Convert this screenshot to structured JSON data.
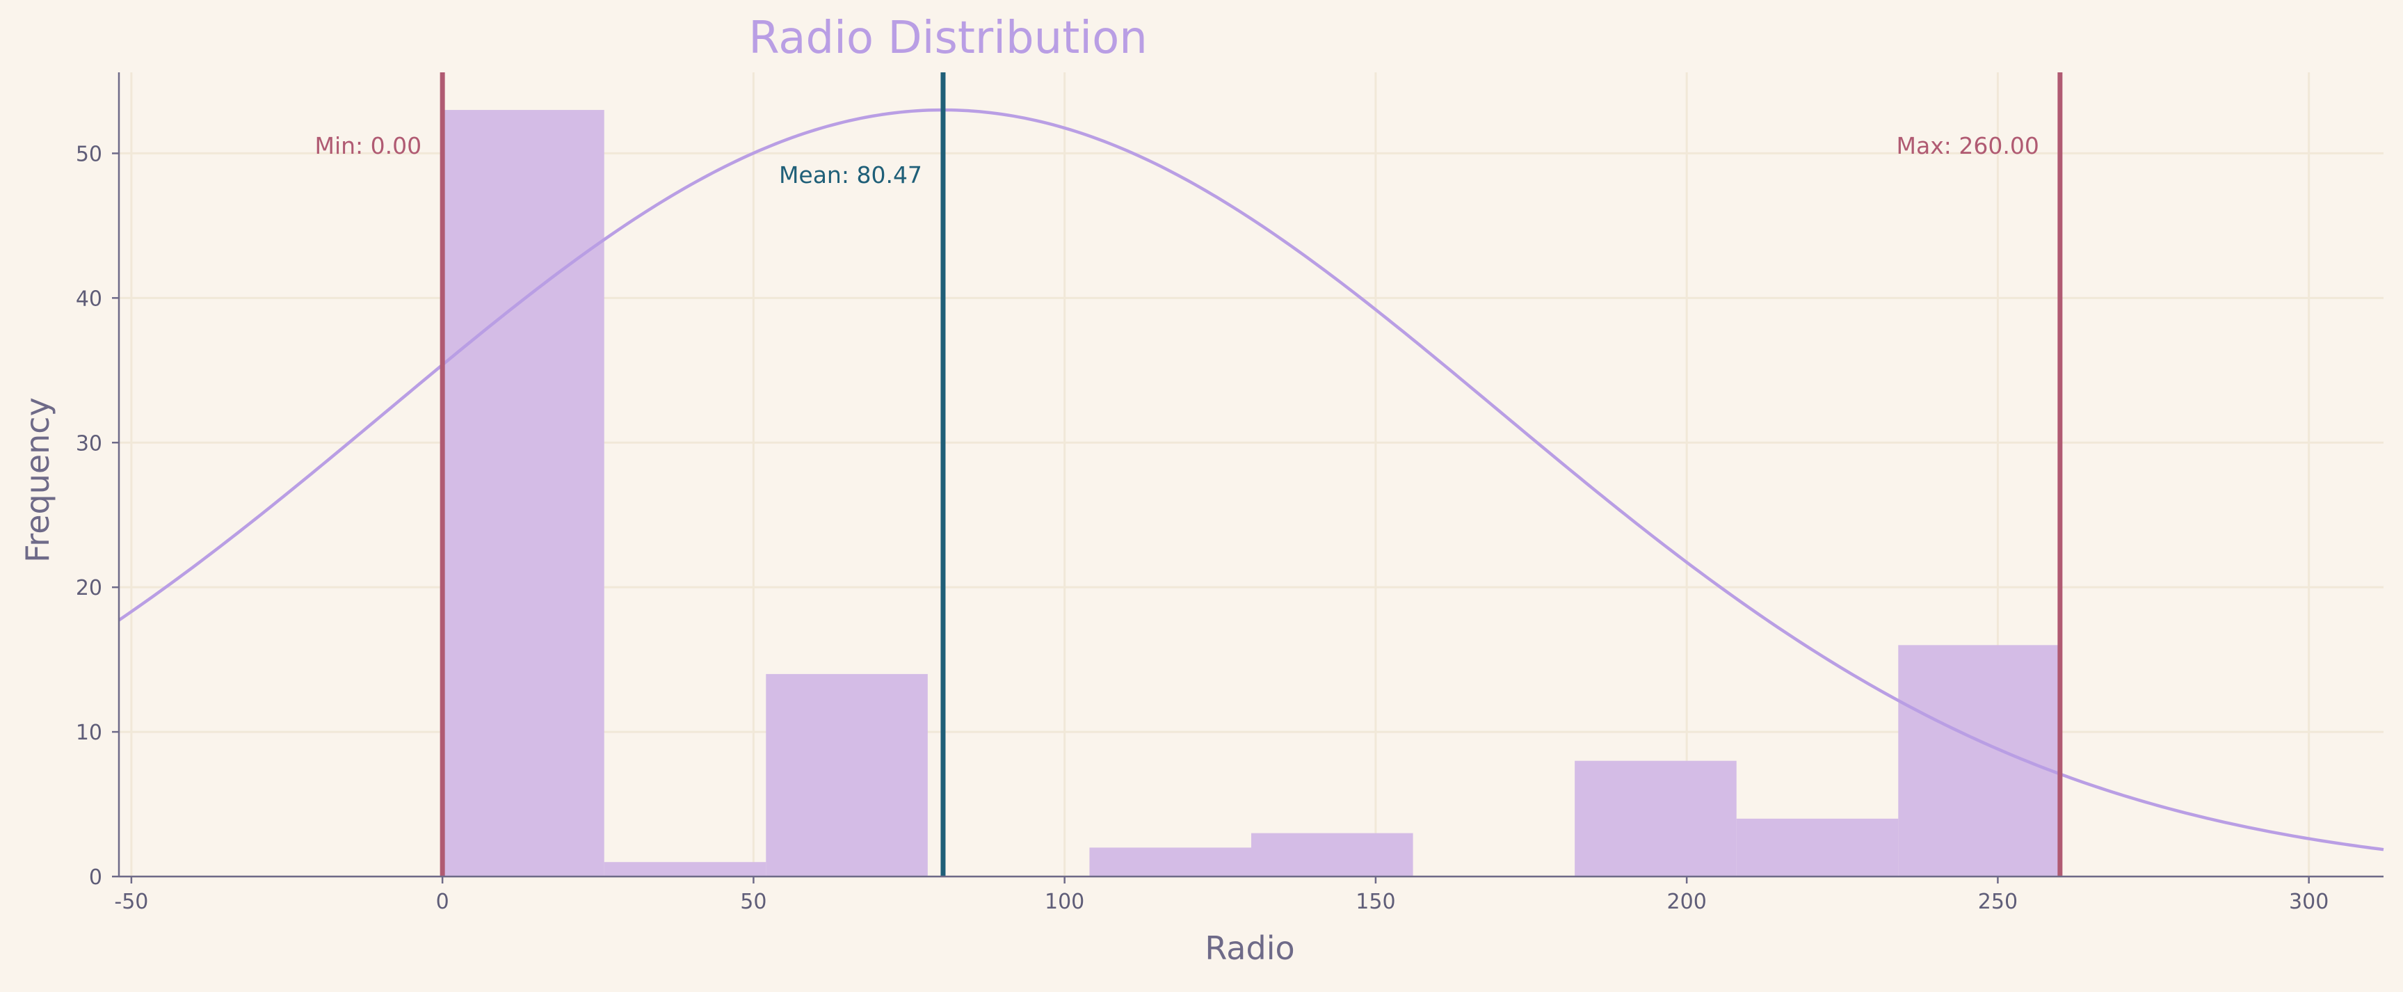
{
  "chart_data": {
    "type": "bar",
    "title": "Radio Distribution",
    "xlabel": "Radio",
    "ylabel": "Frequency",
    "xlim": [
      -52,
      312
    ],
    "ylim": [
      0,
      55.6
    ],
    "xticks": [
      -50,
      0,
      50,
      100,
      150,
      200,
      250,
      300
    ],
    "yticks": [
      0,
      10,
      20,
      30,
      40,
      50
    ],
    "grid": true,
    "bins": [
      {
        "x0": 0,
        "x1": 26,
        "count": 53
      },
      {
        "x0": 26,
        "x1": 52,
        "count": 1
      },
      {
        "x0": 52,
        "x1": 78,
        "count": 14
      },
      {
        "x0": 78,
        "x1": 104,
        "count": 0
      },
      {
        "x0": 104,
        "x1": 130,
        "count": 2
      },
      {
        "x0": 130,
        "x1": 156,
        "count": 3
      },
      {
        "x0": 156,
        "x1": 182,
        "count": 0
      },
      {
        "x0": 182,
        "x1": 208,
        "count": 8
      },
      {
        "x0": 208,
        "x1": 234,
        "count": 4
      },
      {
        "x0": 234,
        "x1": 260,
        "count": 16
      }
    ],
    "normal_curve": {
      "mean": 80.47,
      "std": 89.5,
      "peak": 53
    },
    "reference_lines": [
      {
        "name": "min",
        "x": 0,
        "label": "Min: 0.00",
        "color": "#b05a72"
      },
      {
        "name": "mean",
        "x": 80.47,
        "label": "Mean: 80.47",
        "color": "#1f5f78"
      },
      {
        "name": "max",
        "x": 260,
        "label": "Max: 260.00",
        "color": "#b05a72"
      }
    ],
    "colors": {
      "bar": "#d4bce6",
      "curve": "#b99ee4",
      "grid": "#f1e8d8",
      "axis": "#6e6a88",
      "background": "#faf4ec"
    }
  }
}
